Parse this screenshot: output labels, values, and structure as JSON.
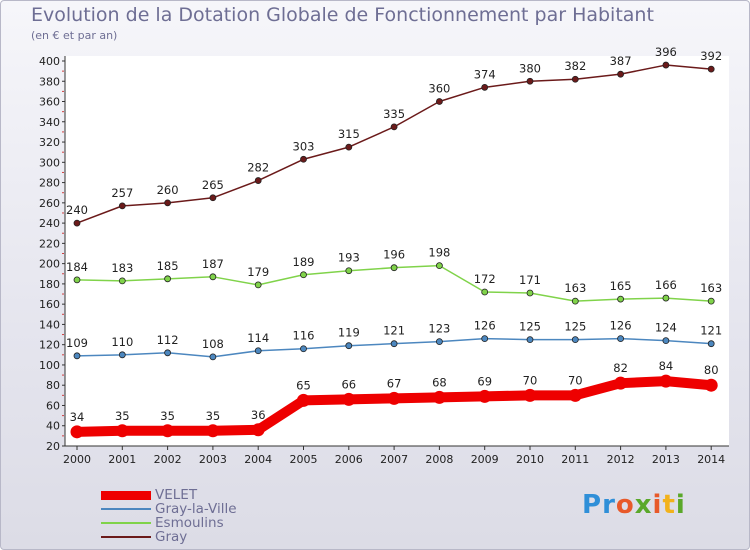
{
  "header": {
    "title": "Evolution de la Dotation Globale de Fonctionnement par Habitant",
    "subtitle": "(en € et par an)"
  },
  "logo": {
    "text": "Proxiti",
    "letters": [
      "P",
      "r",
      "o",
      "x",
      "i",
      "t",
      "i"
    ],
    "colors": [
      "#2f8fd8",
      "#2f8fd8",
      "#e8592a",
      "#5aa82a",
      "#e8592a",
      "#f2b21b",
      "#5aa82a"
    ]
  },
  "chart_data": {
    "type": "line",
    "title": "Evolution de la Dotation Globale de Fonctionnement par Habitant",
    "subtitle": "(en € et par an)",
    "xlabel": "",
    "ylabel": "",
    "ylim": [
      20,
      400
    ],
    "ytick_step": 20,
    "grid": false,
    "legend_position": "bottom-left",
    "categories": [
      "2000",
      "2001",
      "2002",
      "2003",
      "2004",
      "2005",
      "2006",
      "2007",
      "2008",
      "2009",
      "2010",
      "2011",
      "2012",
      "2013",
      "2014"
    ],
    "series": [
      {
        "name": "VELET",
        "color": "#ee0000",
        "values": [
          34,
          35,
          35,
          35,
          36,
          65,
          66,
          67,
          68,
          69,
          70,
          70,
          82,
          84,
          80
        ]
      },
      {
        "name": "Gray-la-Ville",
        "color": "#4c87bf",
        "values": [
          109,
          110,
          112,
          108,
          114,
          116,
          119,
          121,
          123,
          126,
          125,
          125,
          126,
          124,
          121
        ]
      },
      {
        "name": "Esmoulins",
        "color": "#80d34a",
        "values": [
          184,
          183,
          185,
          187,
          179,
          189,
          193,
          196,
          198,
          172,
          171,
          163,
          165,
          166,
          163
        ]
      },
      {
        "name": "Gray",
        "color": "#6b1a1a",
        "values": [
          240,
          257,
          260,
          265,
          282,
          303,
          315,
          335,
          360,
          374,
          380,
          382,
          387,
          396,
          392
        ]
      }
    ]
  }
}
